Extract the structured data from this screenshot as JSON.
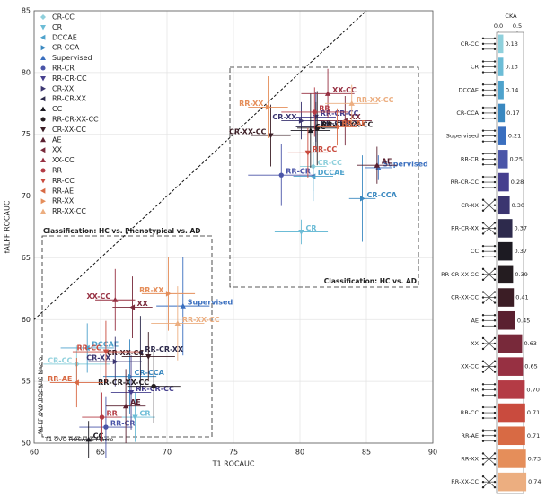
{
  "chart_data": [
    {
      "type": "scatter",
      "xlabel": "T1 ROCAUC",
      "ylabel": "fALFF ROCAUC",
      "xlim": [
        60,
        90
      ],
      "ylim": [
        50,
        85
      ],
      "xticks": [
        60,
        65,
        70,
        75,
        80,
        85,
        90
      ],
      "yticks": [
        50,
        55,
        60,
        65,
        70,
        75,
        80,
        85
      ],
      "grid": true,
      "annotations": [
        "Classification: HC vs. Phenotypical vs. AD",
        "Classification: HC vs. AD",
        "fALFF OVO ROCAUC Macro",
        "T1 OVO ROCAUC Macro"
      ],
      "series": [
        {
          "name": "CR-CC",
          "color": "#8fd0dc",
          "marker": "diamond",
          "x": [
            81.0,
            63.2
          ],
          "values": [
            72.4,
            56.4
          ],
          "xerr": [
            1.0,
            2.5
          ],
          "yerr": [
            2.0,
            1.5
          ]
        },
        {
          "name": "CR",
          "color": "#6cbcd6",
          "marker": "tri-down",
          "x": [
            80.1,
            67.6
          ],
          "values": [
            67.1,
            52.1
          ],
          "xerr": [
            2.0,
            1.5
          ],
          "yerr": [
            1.0,
            2.0
          ]
        },
        {
          "name": "DCCAE",
          "color": "#4ea2cc",
          "marker": "tri-left",
          "x": [
            81.0,
            64.0
          ],
          "values": [
            71.6,
            57.7
          ],
          "xerr": [
            1.5,
            2.0
          ],
          "yerr": [
            2.0,
            2.0
          ]
        },
        {
          "name": "CR-CCA",
          "color": "#3a88c0",
          "marker": "tri-right",
          "x": [
            84.7,
            67.2
          ],
          "values": [
            69.8,
            55.4
          ],
          "xerr": [
            1.0,
            2.0
          ],
          "yerr": [
            3.5,
            3.0
          ]
        },
        {
          "name": "Supervised",
          "color": "#3a6fbf",
          "marker": "tri-up",
          "x": [
            85.9,
            71.2
          ],
          "values": [
            72.3,
            61.1
          ],
          "xerr": [
            1.0,
            2.0
          ],
          "yerr": [
            1.0,
            4.0
          ]
        },
        {
          "name": "RR-CR",
          "color": "#4a55a8",
          "marker": "circle",
          "x": [
            78.6,
            65.4
          ],
          "values": [
            71.7,
            51.3
          ],
          "xerr": [
            2.5,
            2.0
          ],
          "yerr": [
            2.5,
            2.5
          ]
        },
        {
          "name": "RR-CR-CC",
          "color": "#463f8e",
          "marker": "tri-down",
          "x": [
            81.2,
            67.3
          ],
          "values": [
            76.4,
            54.1
          ],
          "xerr": [
            1.5,
            1.5
          ],
          "yerr": [
            2.0,
            3.0
          ]
        },
        {
          "name": "CR-XX",
          "color": "#3b3570",
          "marker": "tri-right",
          "x": [
            80.1,
            66.1
          ],
          "values": [
            76.1,
            56.6
          ],
          "xerr": [
            1.5,
            2.0
          ],
          "yerr": [
            1.5,
            2.0
          ]
        },
        {
          "name": "RR-CR-XX",
          "color": "#2d2a4c",
          "marker": "tri-left",
          "x": [
            81.2,
            68.0
          ],
          "values": [
            75.6,
            57.3
          ],
          "xerr": [
            1.5,
            2.0
          ],
          "yerr": [
            2.0,
            3.0
          ]
        },
        {
          "name": "CC",
          "color": "#1c1a22",
          "marker": "tri-up",
          "x": [
            80.8,
            64.1
          ],
          "values": [
            75.3,
            50.3
          ],
          "xerr": [
            1.5,
            1.5
          ],
          "yerr": [
            3.0,
            1.5
          ]
        },
        {
          "name": "RR-CR-XX-CC",
          "color": "#241c20",
          "marker": "circle",
          "x": [
            81.3,
            69.0
          ],
          "values": [
            75.5,
            54.6
          ],
          "xerr": [
            1.5,
            2.0
          ],
          "yerr": [
            3.0,
            3.0
          ]
        },
        {
          "name": "CR-XX-CC",
          "color": "#3b1d25",
          "marker": "tri-down",
          "x": [
            77.8,
            68.6
          ],
          "values": [
            74.9,
            57.0
          ],
          "xerr": [
            1.5,
            2.0
          ],
          "yerr": [
            2.5,
            2.0
          ]
        },
        {
          "name": "AE",
          "color": "#5a2030",
          "marker": "tri-up",
          "x": [
            85.8,
            66.9
          ],
          "values": [
            72.5,
            53.0
          ],
          "xerr": [
            1.5,
            1.5
          ],
          "yerr": [
            1.5,
            3.0
          ]
        },
        {
          "name": "XX",
          "color": "#78293a",
          "marker": "tri-left",
          "x": [
            83.4,
            67.4
          ],
          "values": [
            76.1,
            61.0
          ],
          "xerr": [
            2.0,
            1.5
          ],
          "yerr": [
            2.0,
            2.5
          ]
        },
        {
          "name": "XX-CC",
          "color": "#973042",
          "marker": "tri-up",
          "x": [
            82.1,
            66.1
          ],
          "values": [
            78.3,
            61.6
          ],
          "xerr": [
            2.0,
            1.5
          ],
          "yerr": [
            2.0,
            2.5
          ]
        },
        {
          "name": "RR",
          "color": "#b43b45",
          "marker": "circle",
          "x": [
            81.1,
            65.1
          ],
          "values": [
            76.8,
            52.1
          ],
          "xerr": [
            2.5,
            1.5
          ],
          "yerr": [
            2.0,
            2.0
          ]
        },
        {
          "name": "RR-CC",
          "color": "#c94b3e",
          "marker": "tri-down",
          "x": [
            80.6,
            65.4
          ],
          "values": [
            73.5,
            57.4
          ],
          "xerr": [
            1.5,
            2.5
          ],
          "yerr": [
            2.0,
            2.5
          ]
        },
        {
          "name": "RR-AE",
          "color": "#d86a44",
          "marker": "tri-left",
          "x": [
            82.8,
            63.2
          ],
          "values": [
            75.6,
            54.9
          ],
          "xerr": [
            1.5,
            2.0
          ],
          "yerr": [
            1.5,
            2.0
          ]
        },
        {
          "name": "RR-XX",
          "color": "#e58e5a",
          "marker": "tri-right",
          "x": [
            77.6,
            70.1
          ],
          "values": [
            77.2,
            62.1
          ],
          "xerr": [
            1.5,
            2.0
          ],
          "yerr": [
            2.5,
            3.0
          ]
        },
        {
          "name": "RR-XX-CC",
          "color": "#ecae80",
          "marker": "tri-up",
          "x": [
            83.9,
            70.8
          ],
          "values": [
            77.5,
            59.7
          ],
          "xerr": [
            2.0,
            2.0
          ],
          "yerr": [
            1.5,
            3.0
          ]
        }
      ]
    },
    {
      "type": "barh",
      "title": "CKA",
      "xlim": [
        0,
        0.74
      ],
      "xticks": [
        {
          "value": 0,
          "label": "0.0"
        },
        {
          "value": 0.5,
          "label": "0.5"
        }
      ],
      "categories": [
        "CR-CC",
        "CR",
        "DCCAE",
        "CR-CCA",
        "Supervised",
        "RR-CR",
        "RR-CR-CC",
        "CR-XX",
        "RR-CR-XX",
        "CC",
        "RR-CR-XX-CC",
        "CR-XX-CC",
        "AE",
        "XX",
        "XX-CC",
        "RR",
        "RR-CC",
        "RR-AE",
        "RR-XX",
        "RR-XX-CC"
      ],
      "values": [
        0.13,
        0.13,
        0.14,
        0.17,
        0.21,
        0.25,
        0.28,
        0.3,
        0.37,
        0.37,
        0.39,
        0.41,
        0.45,
        0.63,
        0.65,
        0.7,
        0.71,
        0.71,
        0.73,
        0.74
      ],
      "value_labels": [
        "0.13",
        "0.13",
        "0.14",
        "0.17",
        "0.21",
        "0.25",
        "0.28",
        "0.30",
        "0.37",
        "0.37",
        "0.39",
        "0.41",
        "0.45",
        "0.63",
        "0.65",
        "0.70",
        "0.71",
        "0.71",
        "0.73",
        "0.74"
      ],
      "colors": [
        "#8fd0dc",
        "#6cbcd6",
        "#4ea2cc",
        "#3a88c0",
        "#3a6fbf",
        "#4a55a8",
        "#463f8e",
        "#3b3570",
        "#2d2a4c",
        "#1c1a22",
        "#241c20",
        "#3b1d25",
        "#5a2030",
        "#78293a",
        "#973042",
        "#b43b45",
        "#c94b3e",
        "#d86a44",
        "#e58e5a",
        "#ecae80"
      ]
    }
  ]
}
